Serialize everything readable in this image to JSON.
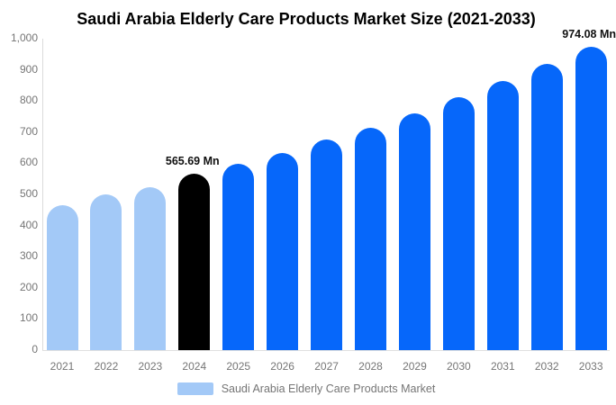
{
  "title": "Saudi Arabia Elderly Care Products Market Size (2021-2033)",
  "legend": {
    "label": "Saudi Arabia Elderly Care Products Market"
  },
  "chart_data": {
    "type": "bar",
    "title": "Saudi Arabia Elderly Care Products Market Size (2021-2033)",
    "unit": "Mn",
    "categories": [
      "2021",
      "2022",
      "2023",
      "2024",
      "2025",
      "2026",
      "2027",
      "2028",
      "2029",
      "2030",
      "2031",
      "2032",
      "2033"
    ],
    "values": [
      466,
      500,
      524,
      565.69,
      598,
      632,
      676,
      713,
      761,
      812,
      864,
      918,
      974.08
    ],
    "bar_styles": [
      "historical",
      "historical",
      "historical",
      "highlight",
      "forecast",
      "forecast",
      "forecast",
      "forecast",
      "forecast",
      "forecast",
      "forecast",
      "forecast",
      "forecast"
    ],
    "colors": {
      "historical": "#a3c9f7",
      "highlight": "#000000",
      "forecast": "#0667fa"
    },
    "point_labels": {
      "2024": "565.69 Mn",
      "2033": "974.08 Mn"
    },
    "xlabel": "",
    "ylabel": "",
    "ylim": [
      0,
      1000
    ],
    "ytick_values": [
      0,
      100,
      200,
      300,
      400,
      500,
      600,
      700,
      800,
      900,
      1000
    ],
    "ytick_labels": [
      "0",
      "100",
      "200",
      "300",
      "400",
      "500",
      "600",
      "700",
      "800",
      "900",
      "1,000"
    ],
    "grid": false,
    "legend_position": "bottom",
    "legend_entries": [
      {
        "label": "Saudi Arabia Elderly Care Products Market",
        "color_key": "historical"
      }
    ]
  }
}
